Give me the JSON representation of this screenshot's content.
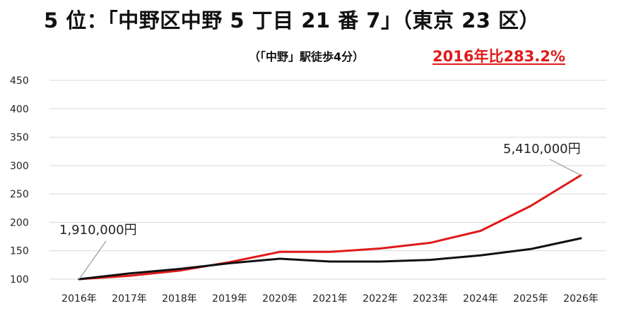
{
  "header": {
    "title": "5 位：「中野区中野 5 丁目 21 番 7」（東京 23 区）",
    "subtitle": "（「中野」駅徒歩4分）",
    "ratio_label": "2016年比283.2%"
  },
  "colors": {
    "series_red": "#e01a1a",
    "series_black": "#111111",
    "grid": "#d9d9d9"
  },
  "chart_data": {
    "type": "line",
    "x": [
      "2016年",
      "2017年",
      "2018年",
      "2019年",
      "2020年",
      "2021年",
      "2022年",
      "2023年",
      "2024年",
      "2025年",
      "2026年"
    ],
    "ylim": [
      100,
      450
    ],
    "yticks": [
      100,
      150,
      200,
      250,
      300,
      350,
      400,
      450
    ],
    "grid": true,
    "series": [
      {
        "color": "#e01a1a",
        "values": [
          100,
          106,
          115,
          130,
          148,
          148,
          154,
          164,
          185,
          229,
          283
        ]
      },
      {
        "color": "#111111",
        "values": [
          100,
          110,
          118,
          128,
          136,
          131,
          131,
          134,
          142,
          153,
          172
        ]
      }
    ],
    "annotations": [
      {
        "text": "1,910,000円",
        "x_index": 0,
        "y": 100
      },
      {
        "text": "5,410,000円",
        "x_index": 10,
        "y": 283
      }
    ]
  }
}
